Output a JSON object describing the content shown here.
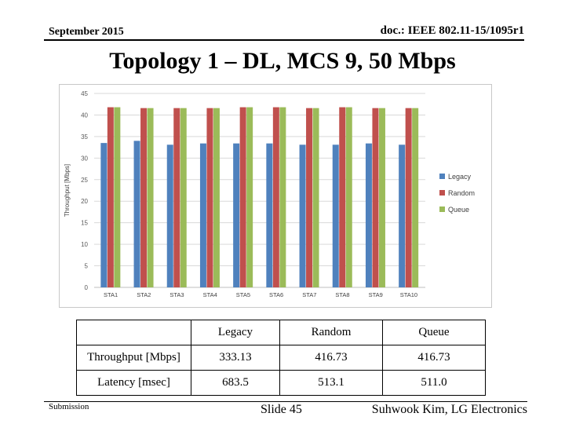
{
  "header": {
    "date": "September 2015",
    "doc_id": "doc.: IEEE 802.11-15/1095r1"
  },
  "slide_title": "Topology 1 – DL, MCS 9, 50 Mbps",
  "chart_data": {
    "type": "bar",
    "title": "",
    "xlabel": "",
    "ylabel": "Throughput [Mbps]",
    "ylim": [
      0,
      45
    ],
    "yticks": [
      0,
      5,
      10,
      15,
      20,
      25,
      30,
      35,
      40,
      45
    ],
    "grid": true,
    "legend_position": "right",
    "categories": [
      "STA1",
      "STA2",
      "STA3",
      "STA4",
      "STA5",
      "STA6",
      "STA7",
      "STA8",
      "STA9",
      "STA10"
    ],
    "series": [
      {
        "name": "Legacy",
        "color": "#4f81bd",
        "values": [
          33.5,
          34.0,
          33.1,
          33.4,
          33.4,
          33.4,
          33.1,
          33.1,
          33.4,
          33.1
        ]
      },
      {
        "name": "Random",
        "color": "#c0504d",
        "values": [
          41.8,
          41.6,
          41.6,
          41.6,
          41.8,
          41.8,
          41.6,
          41.8,
          41.6,
          41.6
        ]
      },
      {
        "name": "Queue",
        "color": "#9bbb59",
        "values": [
          41.8,
          41.6,
          41.6,
          41.6,
          41.8,
          41.8,
          41.6,
          41.8,
          41.6,
          41.6
        ]
      }
    ]
  },
  "table": {
    "headers": [
      "",
      "Legacy",
      "Random",
      "Queue"
    ],
    "rows": [
      [
        "Throughput [Mbps]",
        "333.13",
        "416.73",
        "416.73"
      ],
      [
        "Latency [msec]",
        "683.5",
        "513.1",
        "511.0"
      ]
    ]
  },
  "footer": {
    "left": "Submission",
    "center": "Slide 45",
    "right": "Suhwook Kim, LG Electronics"
  }
}
